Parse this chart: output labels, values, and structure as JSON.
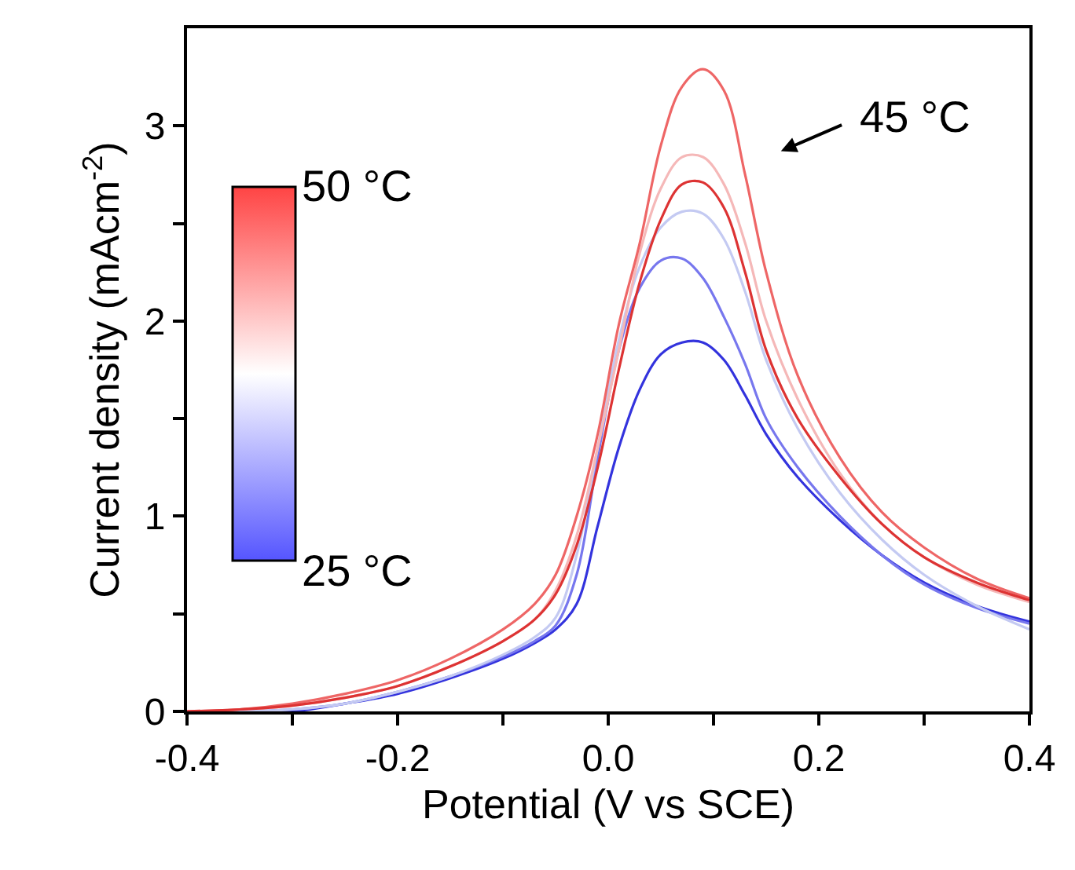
{
  "chart_data": {
    "type": "line",
    "xlabel": "Potential (V vs SCE)",
    "ylabel": "Current density (mAcm$^{-2}$)",
    "x": [
      -0.4,
      -0.35,
      -0.3,
      -0.25,
      -0.2,
      -0.15,
      -0.1,
      -0.07,
      -0.05,
      -0.03,
      -0.01,
      0.01,
      0.03,
      0.05,
      0.07,
      0.09,
      0.11,
      0.13,
      0.15,
      0.18,
      0.22,
      0.26,
      0.3,
      0.35,
      0.4
    ],
    "series": [
      {
        "color": "#3333dd",
        "values": [
          0,
          0,
          0,
          0.04,
          0.09,
          0.17,
          0.27,
          0.35,
          0.42,
          0.55,
          0.95,
          1.35,
          1.65,
          1.83,
          1.89,
          1.89,
          1.8,
          1.62,
          1.42,
          1.2,
          0.98,
          0.8,
          0.66,
          0.54,
          0.46
        ]
      },
      {
        "color": "#7777ee",
        "values": [
          0,
          0,
          0.01,
          0.04,
          0.1,
          0.18,
          0.28,
          0.36,
          0.44,
          0.7,
          1.3,
          1.85,
          2.17,
          2.31,
          2.32,
          2.22,
          2.02,
          1.78,
          1.5,
          1.25,
          1.0,
          0.8,
          0.65,
          0.53,
          0.45
        ]
      },
      {
        "color": "#c4caf2",
        "values": [
          0,
          0,
          0.01,
          0.04,
          0.1,
          0.18,
          0.29,
          0.38,
          0.48,
          0.8,
          1.35,
          1.9,
          2.28,
          2.48,
          2.56,
          2.55,
          2.42,
          2.15,
          1.8,
          1.45,
          1.12,
          0.88,
          0.7,
          0.54,
          0.42
        ]
      },
      {
        "color": "#f5b8b8",
        "values": [
          0,
          0.01,
          0.03,
          0.07,
          0.13,
          0.23,
          0.36,
          0.47,
          0.62,
          0.9,
          1.35,
          1.85,
          2.35,
          2.68,
          2.84,
          2.84,
          2.7,
          2.4,
          2.0,
          1.6,
          1.22,
          0.96,
          0.79,
          0.65,
          0.56
        ]
      },
      {
        "color": "#ee6666",
        "values": [
          0,
          0.01,
          0.04,
          0.09,
          0.16,
          0.27,
          0.42,
          0.55,
          0.7,
          1.0,
          1.42,
          1.98,
          2.4,
          2.9,
          3.2,
          3.29,
          3.18,
          2.75,
          2.25,
          1.72,
          1.3,
          1.02,
          0.84,
          0.68,
          0.58
        ]
      },
      {
        "color": "#dd3333",
        "values": [
          0,
          0.01,
          0.03,
          0.07,
          0.13,
          0.23,
          0.36,
          0.47,
          0.6,
          0.85,
          1.25,
          1.75,
          2.2,
          2.52,
          2.7,
          2.71,
          2.58,
          2.25,
          1.85,
          1.5,
          1.2,
          0.96,
          0.79,
          0.66,
          0.57
        ]
      }
    ],
    "xlim": [
      -0.4,
      0.4
    ],
    "xticks": [
      -0.4,
      {
        "value": -0.3,
        "label": null
      },
      -0.2,
      {
        "value": -0.1,
        "label": null
      },
      {
        "value": 0,
        "label": "0.0"
      },
      {
        "value": 0.1,
        "label": null
      },
      0.2,
      {
        "value": 0.3,
        "label": null
      },
      0.4
    ],
    "ylim": [
      0,
      3.5
    ],
    "yticks": [
      0,
      {
        "value": 0.5,
        "label": null
      },
      1,
      {
        "value": 1.5,
        "label": null
      },
      2,
      {
        "value": 2.5,
        "label": null
      },
      3
    ],
    "annotations": [
      "45 °C",
      "50 °C",
      "25 °C"
    ],
    "marker": "none",
    "line_style": "solid"
  }
}
